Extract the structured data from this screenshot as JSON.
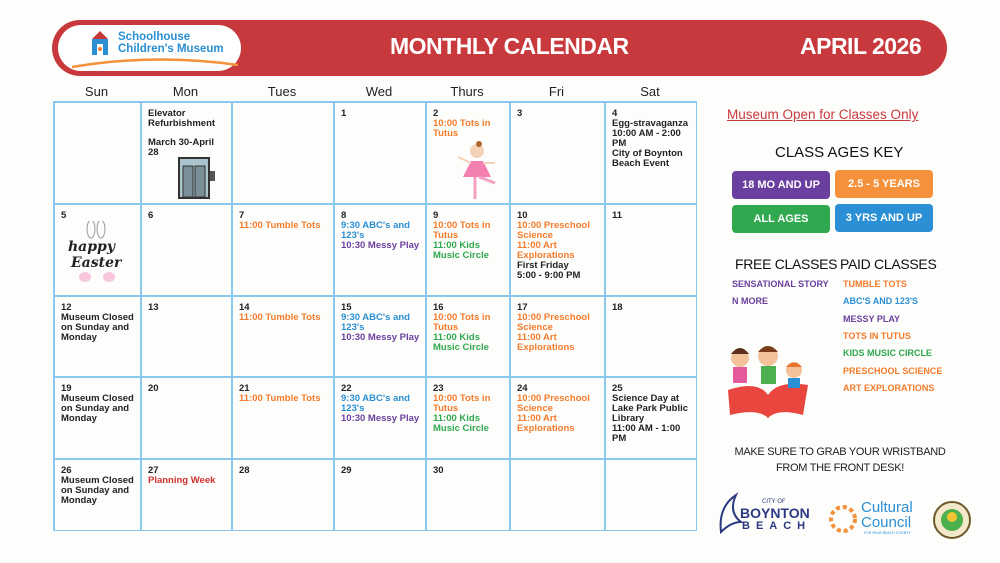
{
  "header": {
    "logo_line1": "Schoolhouse",
    "logo_line2": "Children's Museum",
    "title": "MONTHLY CALENDAR",
    "month": "APRIL 2026",
    "banner_color": "#c8393d"
  },
  "days": [
    "Sun",
    "Mon",
    "Tues",
    "Wed",
    "Thurs",
    "Fri",
    "Sat"
  ],
  "colors": {
    "orange": "#f47c2c",
    "blue": "#2a8fd4",
    "purple": "#6a3fa0",
    "green": "#2fa84f",
    "red": "#d0312d",
    "black": "#222222"
  },
  "calendar": [
    {
      "num": "",
      "events": []
    },
    {
      "num": "",
      "events": [
        {
          "t": "Elevator Refurbishment",
          "c": "black"
        },
        {
          "t": "March 30-April 28",
          "c": "black",
          "gap": true
        }
      ],
      "icon": "elevator-icon"
    },
    {
      "num": "",
      "events": []
    },
    {
      "num": "1",
      "events": []
    },
    {
      "num": "2",
      "events": [
        {
          "t": "10:00 Tots in Tutus",
          "c": "orange"
        }
      ],
      "icon": "ballerina-icon"
    },
    {
      "num": "3",
      "events": []
    },
    {
      "num": "4",
      "events": [
        {
          "t": "Egg-stravaganza",
          "c": "black"
        },
        {
          "t": "10:00 AM - 2:00 PM",
          "c": "black"
        },
        {
          "t": "City of Boynton Beach Event",
          "c": "black"
        }
      ]
    },
    {
      "num": "5",
      "events": [],
      "icon": "happy-easter-icon"
    },
    {
      "num": "6",
      "events": []
    },
    {
      "num": "7",
      "events": [
        {
          "t": "11:00 Tumble Tots",
          "c": "orange"
        }
      ]
    },
    {
      "num": "8",
      "events": [
        {
          "t": "9:30 ABC's and 123's",
          "c": "blue"
        },
        {
          "t": "10:30 Messy Play",
          "c": "purple"
        }
      ]
    },
    {
      "num": "9",
      "events": [
        {
          "t": "10:00 Tots in Tutus",
          "c": "orange"
        },
        {
          "t": "11:00 Kids Music Circle",
          "c": "green"
        }
      ]
    },
    {
      "num": "10",
      "events": [
        {
          "t": "10:00 Preschool Science",
          "c": "orange"
        },
        {
          "t": "11:00 Art Explorations",
          "c": "orange"
        },
        {
          "t": "First Friday",
          "c": "black"
        },
        {
          "t": "5:00 - 9:00 PM",
          "c": "black"
        }
      ]
    },
    {
      "num": "11",
      "events": []
    },
    {
      "num": "12",
      "events": [
        {
          "t": "Museum Closed on Sunday and Monday",
          "c": "black"
        }
      ]
    },
    {
      "num": "13",
      "events": []
    },
    {
      "num": "14",
      "events": [
        {
          "t": "11:00 Tumble Tots",
          "c": "orange"
        }
      ]
    },
    {
      "num": "15",
      "events": [
        {
          "t": "9:30 ABC's and 123's",
          "c": "blue"
        },
        {
          "t": "10:30 Messy Play",
          "c": "purple"
        }
      ]
    },
    {
      "num": "16",
      "events": [
        {
          "t": "10:00 Tots in Tutus",
          "c": "orange"
        },
        {
          "t": "11:00 Kids Music Circle",
          "c": "green"
        }
      ]
    },
    {
      "num": "17",
      "events": [
        {
          "t": "10:00 Preschool Science",
          "c": "orange"
        },
        {
          "t": "11:00 Art Explorations",
          "c": "orange"
        }
      ]
    },
    {
      "num": "18",
      "events": []
    },
    {
      "num": "19",
      "events": [
        {
          "t": "Museum Closed on Sunday and Monday",
          "c": "black"
        }
      ]
    },
    {
      "num": "20",
      "events": []
    },
    {
      "num": "21",
      "events": [
        {
          "t": "11:00 Tumble Tots",
          "c": "orange"
        }
      ]
    },
    {
      "num": "22",
      "events": [
        {
          "t": "9:30 ABC's and 123's",
          "c": "blue"
        },
        {
          "t": "10:30 Messy Play",
          "c": "purple"
        }
      ]
    },
    {
      "num": "23",
      "events": [
        {
          "t": "10:00 Tots in Tutus",
          "c": "orange"
        },
        {
          "t": "11:00 Kids Music Circle",
          "c": "green"
        }
      ]
    },
    {
      "num": "24",
      "events": [
        {
          "t": "10:00 Preschool Science",
          "c": "orange"
        },
        {
          "t": "11:00 Art Explorations",
          "c": "orange"
        }
      ]
    },
    {
      "num": "25",
      "events": [
        {
          "t": "Science Day at Lake Park Public Library",
          "c": "black"
        },
        {
          "t": "11:00 AM - 1:00 PM",
          "c": "black"
        }
      ]
    },
    {
      "num": "26",
      "events": [
        {
          "t": "Museum Closed on Sunday and Monday",
          "c": "black"
        }
      ]
    },
    {
      "num": "27",
      "events": [
        {
          "t": "Planning Week",
          "c": "red"
        }
      ]
    },
    {
      "num": "28",
      "events": []
    },
    {
      "num": "29",
      "events": []
    },
    {
      "num": "30",
      "events": []
    },
    {
      "num": "",
      "events": []
    },
    {
      "num": "",
      "events": []
    }
  ],
  "sidebar": {
    "open_notice": "Museum Open for Classes Only ",
    "key_title": "CLASS AGES KEY",
    "keys": [
      {
        "label": "18 MO AND UP",
        "color": "#6a3fa0"
      },
      {
        "label": "2.5 - 5 YEARS",
        "color": "#f4913a"
      },
      {
        "label": "ALL AGES",
        "color": "#2fa84f"
      },
      {
        "label": "3 YRS AND UP",
        "color": "#2a8fd4"
      }
    ],
    "free_title": "FREE CLASSES",
    "free": [
      {
        "t": "SENSATIONAL STORY",
        "c": "purple"
      },
      {
        "t": "N MORE",
        "c": "purple"
      }
    ],
    "paid_title": "PAID CLASSES",
    "paid": [
      {
        "t": "TUMBLE TOTS",
        "c": "orange"
      },
      {
        "t": "ABC'S AND 123'S",
        "c": "blue"
      },
      {
        "t": "MESSY PLAY",
        "c": "purple"
      },
      {
        "t": "TOTS IN TUTUS",
        "c": "orange"
      },
      {
        "t": "KIDS MUSIC CIRCLE",
        "c": "green"
      },
      {
        "t": "PRESCHOOL SCIENCE",
        "c": "orange"
      },
      {
        "t": "ART EXPLORATIONS",
        "c": "orange"
      }
    ],
    "note_line1": "MAKE SURE TO GRAB YOUR WRISTBAND",
    "note_line2": "FROM THE FRONT DESK!"
  },
  "sponsors": {
    "boynton_small": "CITY OF",
    "boynton_big": "BOYNTON",
    "boynton_sub": "BEACH",
    "cultural_1": "Cultural",
    "cultural_2": "Council",
    "cultural_sub": "FOR PALM BEACH COUNTY"
  }
}
